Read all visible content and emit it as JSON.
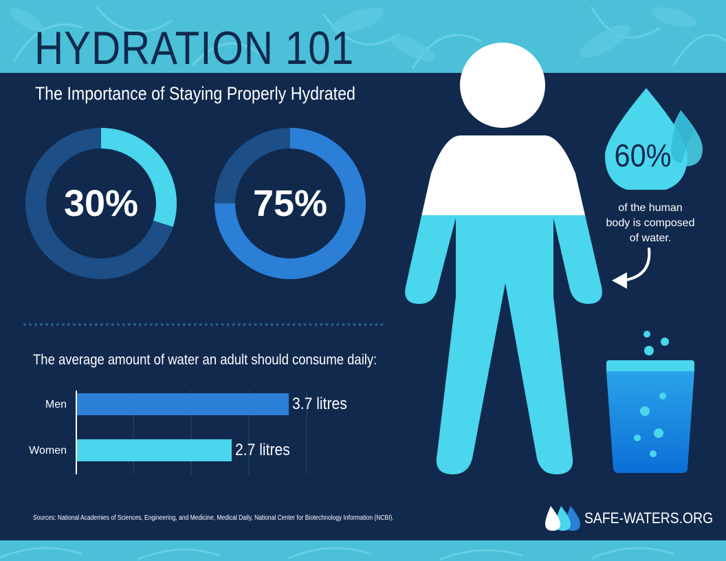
{
  "header": {
    "title": "HYDRATION 101",
    "subtitle": "The Importance of Staying Properly Hydrated"
  },
  "stats": [
    {
      "value": "30%",
      "fraction": 0.3,
      "track_color": "#1d4e86",
      "fill_color": "#4ad6ec"
    },
    {
      "value": "75%",
      "fraction": 0.75,
      "track_color": "#1d4e86",
      "fill_color": "#2b7fd6"
    }
  ],
  "body_callout": {
    "percent": "60%",
    "text_lines": [
      "of the human",
      "body is composed",
      "of water."
    ],
    "water_fraction": 0.6
  },
  "consumption": {
    "question": "The average amount of water an adult should consume daily:"
  },
  "chart_data": {
    "type": "bar",
    "orientation": "horizontal",
    "categories": [
      "Men",
      "Women"
    ],
    "values": [
      3.7,
      2.7
    ],
    "value_labels": [
      "3.7 litres",
      "2.7 litres"
    ],
    "colors": [
      "#2b7fd6",
      "#4ad6ec"
    ],
    "xlim": [
      0,
      4
    ],
    "grid": true
  },
  "footer": {
    "sources": "Sources: National Academies of Sciences, Engineering, and Medicine, Medical Daily, National Center for Biotechnology Information (NCBI).",
    "brand": "SAFE-WATERS.ORG"
  },
  "colors": {
    "navy": "#10294d",
    "cyan": "#4ad6ec",
    "blue": "#2b7fd6",
    "band": "#4cc0d9",
    "white": "#ffffff"
  },
  "icons": [
    "human-figure-icon",
    "water-drops-icon",
    "curved-arrow-icon",
    "water-glass-icon",
    "brand-drops-icon"
  ]
}
